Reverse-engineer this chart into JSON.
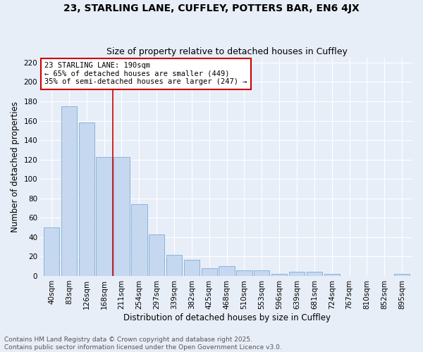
{
  "title1": "23, STARLING LANE, CUFFLEY, POTTERS BAR, EN6 4JX",
  "title2": "Size of property relative to detached houses in Cuffley",
  "xlabel": "Distribution of detached houses by size in Cuffley",
  "ylabel": "Number of detached properties",
  "categories": [
    "40sqm",
    "83sqm",
    "126sqm",
    "168sqm",
    "211sqm",
    "254sqm",
    "297sqm",
    "339sqm",
    "382sqm",
    "425sqm",
    "468sqm",
    "510sqm",
    "553sqm",
    "596sqm",
    "639sqm",
    "681sqm",
    "724sqm",
    "767sqm",
    "810sqm",
    "852sqm",
    "895sqm"
  ],
  "values": [
    50,
    175,
    158,
    123,
    123,
    74,
    43,
    22,
    17,
    8,
    10,
    6,
    6,
    2,
    4,
    4,
    2,
    0,
    0,
    0,
    2
  ],
  "bar_color": "#c5d8f0",
  "bar_edge_color": "#8ab4d8",
  "vline_pos": 3.5,
  "vline_color": "#cc0000",
  "annotation_text": "23 STARLING LANE: 190sqm\n← 65% of detached houses are smaller (449)\n35% of semi-detached houses are larger (247) →",
  "annotation_box_color": "white",
  "annotation_box_edge_color": "#cc0000",
  "ylim": [
    0,
    225
  ],
  "yticks": [
    0,
    20,
    40,
    60,
    80,
    100,
    120,
    140,
    160,
    180,
    200,
    220
  ],
  "bg_color": "#e8eef8",
  "plot_bg_color": "#e8eef8",
  "footer_text": "Contains HM Land Registry data © Crown copyright and database right 2025.\nContains public sector information licensed under the Open Government Licence v3.0.",
  "title_fontsize": 10,
  "subtitle_fontsize": 9,
  "axis_label_fontsize": 8.5,
  "tick_fontsize": 7.5,
  "annotation_fontsize": 7.5,
  "footer_fontsize": 6.5
}
